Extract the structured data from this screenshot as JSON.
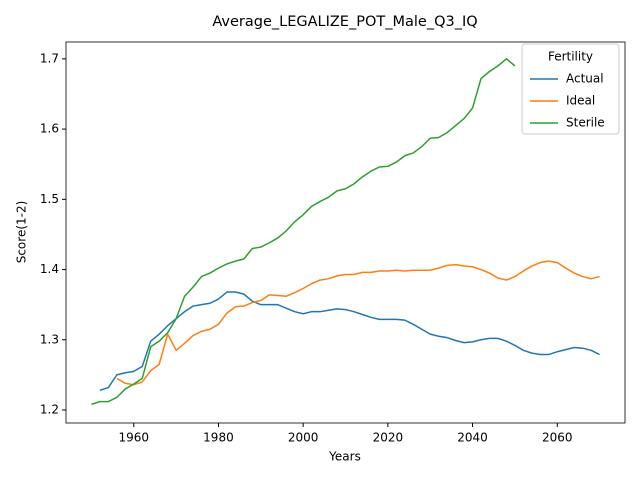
{
  "chart_data": {
    "type": "line",
    "title": "Average_LEGALIZE_POT_Male_Q3_IQ",
    "x_label": "Years",
    "y_label": "Score(1-2)",
    "legend_title": "Fertility",
    "legend_position": "upper right",
    "grid": false,
    "xlim": [
      1944,
      2076
    ],
    "ylim": [
      1.1815,
      1.724
    ],
    "xticks": [
      1960,
      1980,
      2000,
      2020,
      2040,
      2060
    ],
    "yticks": [
      1.2,
      1.3,
      1.4,
      1.5,
      1.6,
      1.7
    ],
    "x": [
      1950,
      1952,
      1954,
      1956,
      1958,
      1960,
      1962,
      1964,
      1966,
      1968,
      1970,
      1972,
      1974,
      1976,
      1978,
      1980,
      1982,
      1984,
      1986,
      1988,
      1990,
      1992,
      1994,
      1996,
      1998,
      2000,
      2002,
      2004,
      2006,
      2008,
      2010,
      2012,
      2014,
      2016,
      2018,
      2020,
      2022,
      2024,
      2026,
      2028,
      2030,
      2032,
      2034,
      2036,
      2038,
      2040,
      2042,
      2044,
      2046,
      2048,
      2050,
      2052,
      2054,
      2056,
      2058,
      2060,
      2062,
      2064,
      2066,
      2068,
      2070
    ],
    "series": [
      {
        "name": "Actual",
        "color": "#1f77b4",
        "values": [
          null,
          1.228,
          1.232,
          1.25,
          1.253,
          1.255,
          1.262,
          1.298,
          1.308,
          1.32,
          1.33,
          1.34,
          1.348,
          1.35,
          1.352,
          1.358,
          1.368,
          1.368,
          1.365,
          1.355,
          1.35,
          1.35,
          1.35,
          1.345,
          1.34,
          1.337,
          1.34,
          1.34,
          1.342,
          1.344,
          1.343,
          1.34,
          1.336,
          1.332,
          1.329,
          1.329,
          1.329,
          1.328,
          1.322,
          1.315,
          1.308,
          1.305,
          1.303,
          1.299,
          1.296,
          1.297,
          1.3,
          1.302,
          1.302,
          1.298,
          1.292,
          1.285,
          1.281,
          1.279,
          1.279,
          1.283,
          1.286,
          1.289,
          1.288,
          1.285,
          1.279
        ]
      },
      {
        "name": "Ideal",
        "color": "#ff7f0e",
        "values": [
          null,
          null,
          null,
          1.245,
          1.238,
          1.236,
          1.24,
          1.256,
          1.265,
          1.308,
          1.285,
          1.295,
          1.306,
          1.312,
          1.315,
          1.322,
          1.338,
          1.347,
          1.348,
          1.353,
          1.356,
          1.364,
          1.363,
          1.362,
          1.367,
          1.373,
          1.38,
          1.385,
          1.387,
          1.391,
          1.393,
          1.393,
          1.396,
          1.396,
          1.398,
          1.398,
          1.399,
          1.398,
          1.399,
          1.399,
          1.399,
          1.402,
          1.406,
          1.407,
          1.405,
          1.404,
          1.4,
          1.395,
          1.388,
          1.385,
          1.39,
          1.398,
          1.405,
          1.41,
          1.412,
          1.41,
          1.402,
          1.395,
          1.39,
          1.387,
          1.39
        ]
      },
      {
        "name": "Sterile",
        "color": "#2ca02c",
        "values": [
          1.208,
          1.212,
          1.212,
          1.218,
          1.23,
          1.237,
          1.245,
          1.29,
          1.298,
          1.31,
          1.33,
          1.362,
          1.375,
          1.39,
          1.395,
          1.402,
          1.408,
          1.412,
          1.415,
          1.43,
          1.432,
          1.438,
          1.445,
          1.455,
          1.468,
          1.478,
          1.49,
          1.497,
          1.503,
          1.512,
          1.515,
          1.522,
          1.532,
          1.54,
          1.546,
          1.547,
          1.553,
          1.562,
          1.566,
          1.575,
          1.587,
          1.588,
          1.595,
          1.605,
          1.615,
          1.63,
          1.672,
          1.682,
          1.69,
          1.7,
          1.69,
          null,
          null,
          null,
          null,
          null,
          null,
          null,
          null,
          null,
          null
        ]
      }
    ]
  }
}
